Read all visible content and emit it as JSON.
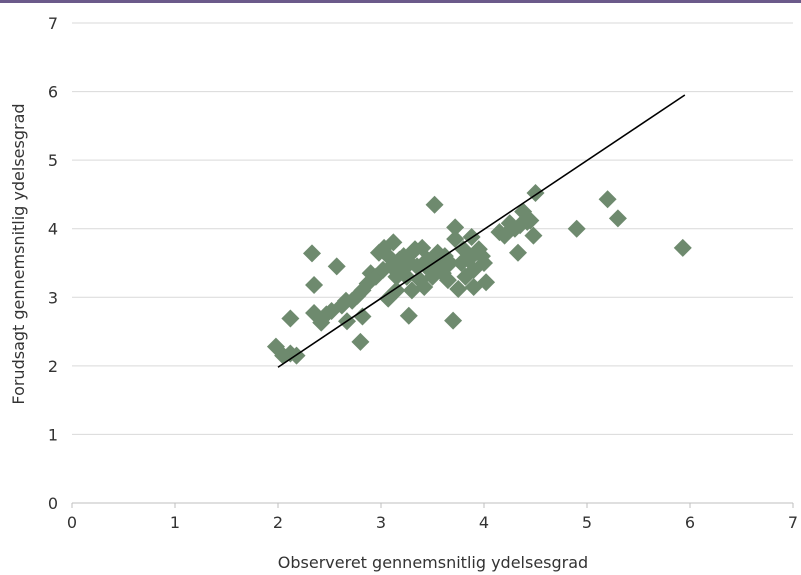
{
  "chart_data": {
    "type": "scatter",
    "title": "",
    "xlabel": "Observeret gennemsnitlig ydelsesgrad",
    "ylabel": "Forudsagt gennemsnitlig ydelsesgrad",
    "xlim": [
      0,
      7
    ],
    "ylim": [
      0,
      7
    ],
    "x_ticks": [
      "0",
      "1",
      "2",
      "3",
      "4",
      "5",
      "6",
      "7"
    ],
    "y_ticks": [
      "0",
      "1",
      "2",
      "3",
      "4",
      "5",
      "6",
      "7"
    ],
    "grid": "horizontal",
    "legend": "none",
    "marker": "diamond",
    "colors": {
      "points": "#6e8a6e",
      "line": "#000000",
      "grid": "#d9d9d9",
      "top_rule": "#6b5a8a"
    },
    "reference_line": {
      "x": [
        2.0,
        5.95
      ],
      "y": [
        1.98,
        5.95
      ]
    },
    "points": [
      [
        1.98,
        2.28
      ],
      [
        2.05,
        2.15
      ],
      [
        2.12,
        2.18
      ],
      [
        2.18,
        2.15
      ],
      [
        2.12,
        2.69
      ],
      [
        2.33,
        3.64
      ],
      [
        2.35,
        3.18
      ],
      [
        2.35,
        2.77
      ],
      [
        2.42,
        2.63
      ],
      [
        2.47,
        2.75
      ],
      [
        2.52,
        2.8
      ],
      [
        2.57,
        3.45
      ],
      [
        2.62,
        2.88
      ],
      [
        2.66,
        2.95
      ],
      [
        2.67,
        2.65
      ],
      [
        2.72,
        2.95
      ],
      [
        2.77,
        3.02
      ],
      [
        2.8,
        2.35
      ],
      [
        2.82,
        3.1
      ],
      [
        2.82,
        2.72
      ],
      [
        2.87,
        3.2
      ],
      [
        2.9,
        3.35
      ],
      [
        2.95,
        3.3
      ],
      [
        2.98,
        3.65
      ],
      [
        3.02,
        3.4
      ],
      [
        3.03,
        3.72
      ],
      [
        3.07,
        3.6
      ],
      [
        3.07,
        2.98
      ],
      [
        3.1,
        3.45
      ],
      [
        3.12,
        3.8
      ],
      [
        3.15,
        3.3
      ],
      [
        3.15,
        3.1
      ],
      [
        3.18,
        3.55
      ],
      [
        3.2,
        3.4
      ],
      [
        3.22,
        3.6
      ],
      [
        3.25,
        3.3
      ],
      [
        3.28,
        3.5
      ],
      [
        3.3,
        3.65
      ],
      [
        3.27,
        2.73
      ],
      [
        3.3,
        3.1
      ],
      [
        3.33,
        3.7
      ],
      [
        3.35,
        3.45
      ],
      [
        3.38,
        3.25
      ],
      [
        3.4,
        3.72
      ],
      [
        3.42,
        3.15
      ],
      [
        3.45,
        3.55
      ],
      [
        3.47,
        3.4
      ],
      [
        3.5,
        3.3
      ],
      [
        3.52,
        4.35
      ],
      [
        3.55,
        3.65
      ],
      [
        3.57,
        3.48
      ],
      [
        3.6,
        3.35
      ],
      [
        3.62,
        3.6
      ],
      [
        3.65,
        3.25
      ],
      [
        3.67,
        3.5
      ],
      [
        3.7,
        2.66
      ],
      [
        3.72,
        4.02
      ],
      [
        3.72,
        3.85
      ],
      [
        3.75,
        3.12
      ],
      [
        3.78,
        3.5
      ],
      [
        3.8,
        3.7
      ],
      [
        3.82,
        3.3
      ],
      [
        3.85,
        3.55
      ],
      [
        3.88,
        3.88
      ],
      [
        3.9,
        3.4
      ],
      [
        3.92,
        3.65
      ],
      [
        3.9,
        3.15
      ],
      [
        3.95,
        3.7
      ],
      [
        3.98,
        3.6
      ],
      [
        4.0,
        3.5
      ],
      [
        4.02,
        3.22
      ],
      [
        4.15,
        3.95
      ],
      [
        4.2,
        3.9
      ],
      [
        4.25,
        4.08
      ],
      [
        4.3,
        4.0
      ],
      [
        4.33,
        3.65
      ],
      [
        4.35,
        4.05
      ],
      [
        4.38,
        4.25
      ],
      [
        4.42,
        4.1
      ],
      [
        4.45,
        4.12
      ],
      [
        4.48,
        3.9
      ],
      [
        4.5,
        4.52
      ],
      [
        4.9,
        4.0
      ],
      [
        5.2,
        4.43
      ],
      [
        5.3,
        4.15
      ],
      [
        5.93,
        3.72
      ]
    ]
  }
}
